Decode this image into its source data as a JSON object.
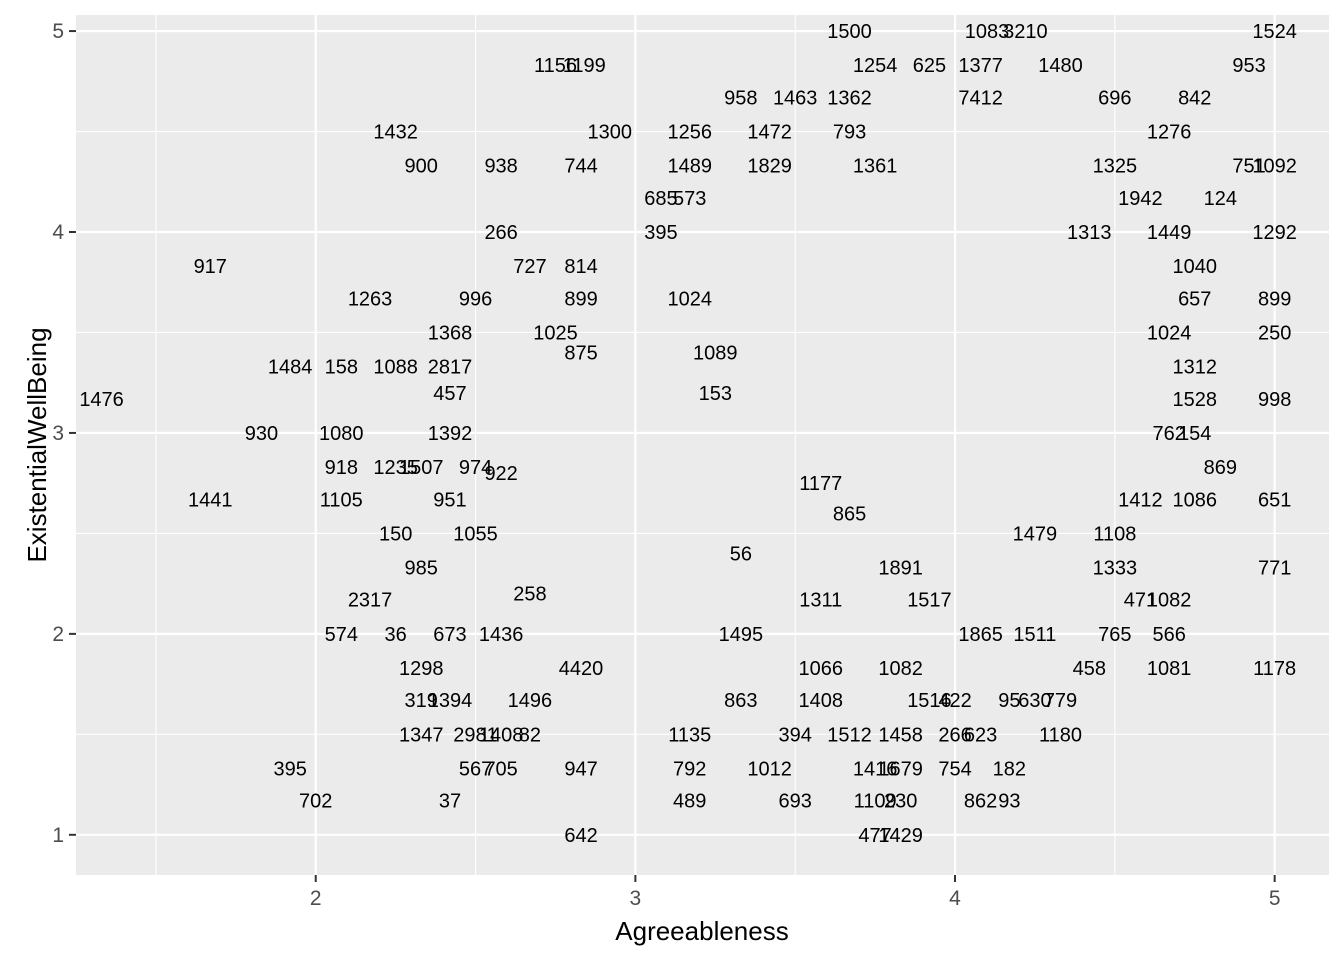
{
  "chart_data": {
    "type": "scatter",
    "xlabel": "Agreeableness",
    "ylabel": "ExistentialWellBeing",
    "xlim": [
      1.25,
      5.17
    ],
    "ylim": [
      0.8,
      5.08
    ],
    "x_ticks": [
      2,
      3,
      4,
      5
    ],
    "y_ticks": [
      1,
      2,
      3,
      4,
      5
    ],
    "grid": true,
    "legend": "none",
    "note": "Each point is drawn as its text label (participant ID) at (Agreeableness, ExistentialWellBeing). Only the legible labels are transcribed; many overlapping labels in dense regions are omitted.",
    "points": [
      {
        "label": "1500",
        "x": 3.67,
        "y": 5.0
      },
      {
        "label": "1083",
        "x": 4.1,
        "y": 5.0
      },
      {
        "label": "3210",
        "x": 4.22,
        "y": 5.0
      },
      {
        "label": "1524",
        "x": 5.0,
        "y": 5.0
      },
      {
        "label": "1156",
        "x": 2.75,
        "y": 4.83
      },
      {
        "label": "1199",
        "x": 2.84,
        "y": 4.83
      },
      {
        "label": "1254",
        "x": 3.75,
        "y": 4.83
      },
      {
        "label": "625",
        "x": 3.92,
        "y": 4.83
      },
      {
        "label": "1377",
        "x": 4.08,
        "y": 4.83
      },
      {
        "label": "1480",
        "x": 4.33,
        "y": 4.83
      },
      {
        "label": "953",
        "x": 4.92,
        "y": 4.83
      },
      {
        "label": "958",
        "x": 3.33,
        "y": 4.67
      },
      {
        "label": "1463",
        "x": 3.5,
        "y": 4.67
      },
      {
        "label": "1362",
        "x": 3.67,
        "y": 4.67
      },
      {
        "label": "7412",
        "x": 4.08,
        "y": 4.67
      },
      {
        "label": "696",
        "x": 4.5,
        "y": 4.67
      },
      {
        "label": "842",
        "x": 4.75,
        "y": 4.67
      },
      {
        "label": "1432",
        "x": 2.25,
        "y": 4.5
      },
      {
        "label": "1300",
        "x": 2.92,
        "y": 4.5
      },
      {
        "label": "1256",
        "x": 3.17,
        "y": 4.5
      },
      {
        "label": "1472",
        "x": 3.42,
        "y": 4.5
      },
      {
        "label": "793",
        "x": 3.67,
        "y": 4.5
      },
      {
        "label": "1276",
        "x": 4.67,
        "y": 4.5
      },
      {
        "label": "900",
        "x": 2.33,
        "y": 4.33
      },
      {
        "label": "938",
        "x": 2.58,
        "y": 4.33
      },
      {
        "label": "744",
        "x": 2.83,
        "y": 4.33
      },
      {
        "label": "1489",
        "x": 3.17,
        "y": 4.33
      },
      {
        "label": "1829",
        "x": 3.42,
        "y": 4.33
      },
      {
        "label": "1361",
        "x": 3.75,
        "y": 4.33
      },
      {
        "label": "1325",
        "x": 4.5,
        "y": 4.33
      },
      {
        "label": "751",
        "x": 4.92,
        "y": 4.33
      },
      {
        "label": "1092",
        "x": 5.0,
        "y": 4.33
      },
      {
        "label": "685",
        "x": 3.08,
        "y": 4.17
      },
      {
        "label": "573",
        "x": 3.17,
        "y": 4.17
      },
      {
        "label": "1942",
        "x": 4.58,
        "y": 4.17
      },
      {
        "label": "124",
        "x": 4.83,
        "y": 4.17
      },
      {
        "label": "266",
        "x": 2.58,
        "y": 4.0
      },
      {
        "label": "395",
        "x": 3.08,
        "y": 4.0
      },
      {
        "label": "1313",
        "x": 4.42,
        "y": 4.0
      },
      {
        "label": "1449",
        "x": 4.67,
        "y": 4.0
      },
      {
        "label": "1292",
        "x": 5.0,
        "y": 4.0
      },
      {
        "label": "917",
        "x": 1.67,
        "y": 3.83
      },
      {
        "label": "727",
        "x": 2.67,
        "y": 3.83
      },
      {
        "label": "814",
        "x": 2.83,
        "y": 3.83
      },
      {
        "label": "1040",
        "x": 4.75,
        "y": 3.83
      },
      {
        "label": "1263",
        "x": 2.17,
        "y": 3.67
      },
      {
        "label": "996",
        "x": 2.5,
        "y": 3.67
      },
      {
        "label": "899",
        "x": 2.83,
        "y": 3.67
      },
      {
        "label": "1024",
        "x": 3.17,
        "y": 3.67
      },
      {
        "label": "657",
        "x": 4.75,
        "y": 3.67
      },
      {
        "label": "899",
        "x": 5.0,
        "y": 3.67
      },
      {
        "label": "1368",
        "x": 2.42,
        "y": 3.5
      },
      {
        "label": "1025",
        "x": 2.75,
        "y": 3.5
      },
      {
        "label": "1024",
        "x": 4.67,
        "y": 3.5
      },
      {
        "label": "250",
        "x": 5.0,
        "y": 3.5
      },
      {
        "label": "875",
        "x": 2.83,
        "y": 3.4
      },
      {
        "label": "1089",
        "x": 3.25,
        "y": 3.4
      },
      {
        "label": "1484",
        "x": 1.92,
        "y": 3.33
      },
      {
        "label": "158",
        "x": 2.08,
        "y": 3.33
      },
      {
        "label": "1088",
        "x": 2.25,
        "y": 3.33
      },
      {
        "label": "2817",
        "x": 2.42,
        "y": 3.33
      },
      {
        "label": "1312",
        "x": 4.75,
        "y": 3.33
      },
      {
        "label": "457",
        "x": 2.42,
        "y": 3.2
      },
      {
        "label": "153",
        "x": 3.25,
        "y": 3.2
      },
      {
        "label": "1476",
        "x": 1.33,
        "y": 3.17
      },
      {
        "label": "1528",
        "x": 4.75,
        "y": 3.17
      },
      {
        "label": "998",
        "x": 5.0,
        "y": 3.17
      },
      {
        "label": "930",
        "x": 1.83,
        "y": 3.0
      },
      {
        "label": "1080",
        "x": 2.08,
        "y": 3.0
      },
      {
        "label": "1392",
        "x": 2.42,
        "y": 3.0
      },
      {
        "label": "762",
        "x": 4.67,
        "y": 3.0
      },
      {
        "label": "154",
        "x": 4.75,
        "y": 3.0
      },
      {
        "label": "918",
        "x": 2.08,
        "y": 2.83
      },
      {
        "label": "1235",
        "x": 2.25,
        "y": 2.83
      },
      {
        "label": "1507",
        "x": 2.33,
        "y": 2.83
      },
      {
        "label": "974",
        "x": 2.5,
        "y": 2.83
      },
      {
        "label": "922",
        "x": 2.58,
        "y": 2.8
      },
      {
        "label": "869",
        "x": 4.83,
        "y": 2.83
      },
      {
        "label": "1177",
        "x": 3.58,
        "y": 2.75
      },
      {
        "label": "1441",
        "x": 1.67,
        "y": 2.67
      },
      {
        "label": "1105",
        "x": 2.08,
        "y": 2.67
      },
      {
        "label": "951",
        "x": 2.42,
        "y": 2.67
      },
      {
        "label": "1412",
        "x": 4.58,
        "y": 2.67
      },
      {
        "label": "1086",
        "x": 4.75,
        "y": 2.67
      },
      {
        "label": "651",
        "x": 5.0,
        "y": 2.67
      },
      {
        "label": "865",
        "x": 3.67,
        "y": 2.6
      },
      {
        "label": "150",
        "x": 2.25,
        "y": 2.5
      },
      {
        "label": "1055",
        "x": 2.5,
        "y": 2.5
      },
      {
        "label": "1479",
        "x": 4.25,
        "y": 2.5
      },
      {
        "label": "1108",
        "x": 4.5,
        "y": 2.5
      },
      {
        "label": "56",
        "x": 3.33,
        "y": 2.4
      },
      {
        "label": "985",
        "x": 2.33,
        "y": 2.33
      },
      {
        "label": "1891",
        "x": 3.83,
        "y": 2.33
      },
      {
        "label": "1333",
        "x": 4.5,
        "y": 2.33
      },
      {
        "label": "771",
        "x": 5.0,
        "y": 2.33
      },
      {
        "label": "258",
        "x": 2.67,
        "y": 2.2
      },
      {
        "label": "2317",
        "x": 2.17,
        "y": 2.17
      },
      {
        "label": "1311",
        "x": 3.58,
        "y": 2.17
      },
      {
        "label": "1517",
        "x": 3.92,
        "y": 2.17
      },
      {
        "label": "471",
        "x": 4.58,
        "y": 2.17
      },
      {
        "label": "1082",
        "x": 4.67,
        "y": 2.17
      },
      {
        "label": "574",
        "x": 2.08,
        "y": 2.0
      },
      {
        "label": "36",
        "x": 2.25,
        "y": 2.0
      },
      {
        "label": "673",
        "x": 2.42,
        "y": 2.0
      },
      {
        "label": "1436",
        "x": 2.58,
        "y": 2.0
      },
      {
        "label": "1495",
        "x": 3.33,
        "y": 2.0
      },
      {
        "label": "1865",
        "x": 4.08,
        "y": 2.0
      },
      {
        "label": "1511",
        "x": 4.25,
        "y": 2.0
      },
      {
        "label": "765",
        "x": 4.5,
        "y": 2.0
      },
      {
        "label": "566",
        "x": 4.67,
        "y": 2.0
      },
      {
        "label": "1298",
        "x": 2.33,
        "y": 1.83
      },
      {
        "label": "4420",
        "x": 2.83,
        "y": 1.83
      },
      {
        "label": "1066",
        "x": 3.58,
        "y": 1.83
      },
      {
        "label": "1082",
        "x": 3.83,
        "y": 1.83
      },
      {
        "label": "458",
        "x": 4.42,
        "y": 1.83
      },
      {
        "label": "1081",
        "x": 4.67,
        "y": 1.83
      },
      {
        "label": "1178",
        "x": 5.0,
        "y": 1.83
      },
      {
        "label": "319",
        "x": 2.33,
        "y": 1.67
      },
      {
        "label": "1394",
        "x": 2.42,
        "y": 1.67
      },
      {
        "label": "1496",
        "x": 2.67,
        "y": 1.67
      },
      {
        "label": "863",
        "x": 3.33,
        "y": 1.67
      },
      {
        "label": "1408",
        "x": 3.58,
        "y": 1.67
      },
      {
        "label": "1516",
        "x": 3.92,
        "y": 1.67
      },
      {
        "label": "422",
        "x": 4.0,
        "y": 1.67
      },
      {
        "label": "95",
        "x": 4.17,
        "y": 1.67
      },
      {
        "label": "630",
        "x": 4.25,
        "y": 1.67
      },
      {
        "label": "779",
        "x": 4.33,
        "y": 1.67
      },
      {
        "label": "1347",
        "x": 2.33,
        "y": 1.5
      },
      {
        "label": "2981",
        "x": 2.5,
        "y": 1.5
      },
      {
        "label": "1408",
        "x": 2.58,
        "y": 1.5
      },
      {
        "label": "82",
        "x": 2.67,
        "y": 1.5
      },
      {
        "label": "1135",
        "x": 3.17,
        "y": 1.5
      },
      {
        "label": "394",
        "x": 3.5,
        "y": 1.5
      },
      {
        "label": "1512",
        "x": 3.67,
        "y": 1.5
      },
      {
        "label": "1458",
        "x": 3.83,
        "y": 1.5
      },
      {
        "label": "266",
        "x": 4.0,
        "y": 1.5
      },
      {
        "label": "623",
        "x": 4.08,
        "y": 1.5
      },
      {
        "label": "1180",
        "x": 4.33,
        "y": 1.5
      },
      {
        "label": "395",
        "x": 1.92,
        "y": 1.33
      },
      {
        "label": "567",
        "x": 2.5,
        "y": 1.33
      },
      {
        "label": "705",
        "x": 2.58,
        "y": 1.33
      },
      {
        "label": "947",
        "x": 2.83,
        "y": 1.33
      },
      {
        "label": "792",
        "x": 3.17,
        "y": 1.33
      },
      {
        "label": "1012",
        "x": 3.42,
        "y": 1.33
      },
      {
        "label": "1416",
        "x": 3.75,
        "y": 1.33
      },
      {
        "label": "1679",
        "x": 3.83,
        "y": 1.33
      },
      {
        "label": "754",
        "x": 4.0,
        "y": 1.33
      },
      {
        "label": "182",
        "x": 4.17,
        "y": 1.33
      },
      {
        "label": "702",
        "x": 2.0,
        "y": 1.17
      },
      {
        "label": "37",
        "x": 2.42,
        "y": 1.17
      },
      {
        "label": "489",
        "x": 3.17,
        "y": 1.17
      },
      {
        "label": "693",
        "x": 3.5,
        "y": 1.17
      },
      {
        "label": "1109",
        "x": 3.75,
        "y": 1.17
      },
      {
        "label": "230",
        "x": 3.83,
        "y": 1.17
      },
      {
        "label": "862",
        "x": 4.08,
        "y": 1.17
      },
      {
        "label": "93",
        "x": 4.17,
        "y": 1.17
      },
      {
        "label": "642",
        "x": 2.83,
        "y": 1.0
      },
      {
        "label": "477",
        "x": 3.75,
        "y": 1.0
      },
      {
        "label": "1429",
        "x": 3.83,
        "y": 1.0
      }
    ]
  }
}
